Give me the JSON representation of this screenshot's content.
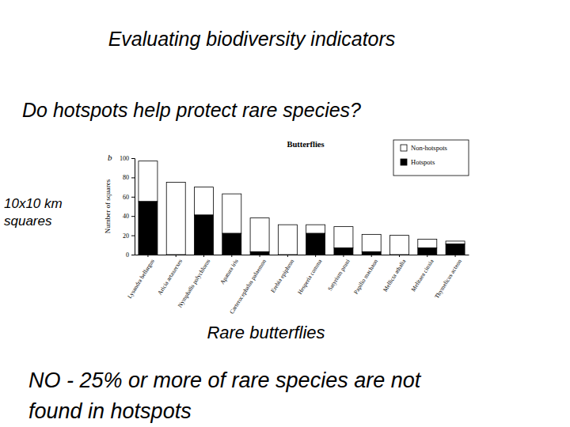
{
  "slide": {
    "heading": "Evaluating biodiversity indicators",
    "question": "Do hotspots help protect rare species?",
    "y_note": [
      "10x10 km",
      "squares"
    ],
    "x_note": "Rare butterflies",
    "conclusion": [
      "NO - 25% or more of rare species are not",
      "found in hotspots"
    ]
  },
  "chart_data": {
    "type": "bar",
    "title": "Butterflies",
    "annotations": [
      "b"
    ],
    "y_label": "Number of squares",
    "categories": [
      "Lysandra bellargus",
      "Aricia artaxerxes",
      "Nymphalis polychloros",
      "Apatura iris",
      "Carterocephalus palaemon",
      "Erebia epiphron",
      "Hesperia comma",
      "Satyrium pruni",
      "Papilio machaon",
      "Mellicta athalia",
      "Melitaea cinxia",
      "Thymelicus acteon"
    ],
    "series": [
      {
        "name": "Non-hotspots",
        "color": "#ffffff",
        "values": [
          42,
          75,
          29,
          41,
          35,
          31,
          9,
          22,
          18,
          20,
          9,
          3
        ]
      },
      {
        "name": "Hotspots",
        "color": "#000000",
        "values": [
          55,
          0,
          41,
          22,
          3,
          0,
          22,
          7,
          3,
          0,
          7,
          11
        ]
      }
    ],
    "stacked": true,
    "legend": "top-right",
    "grid": false,
    "ylim": [
      0,
      100
    ],
    "yticks": [
      0,
      20,
      40,
      60,
      80,
      100
    ]
  }
}
